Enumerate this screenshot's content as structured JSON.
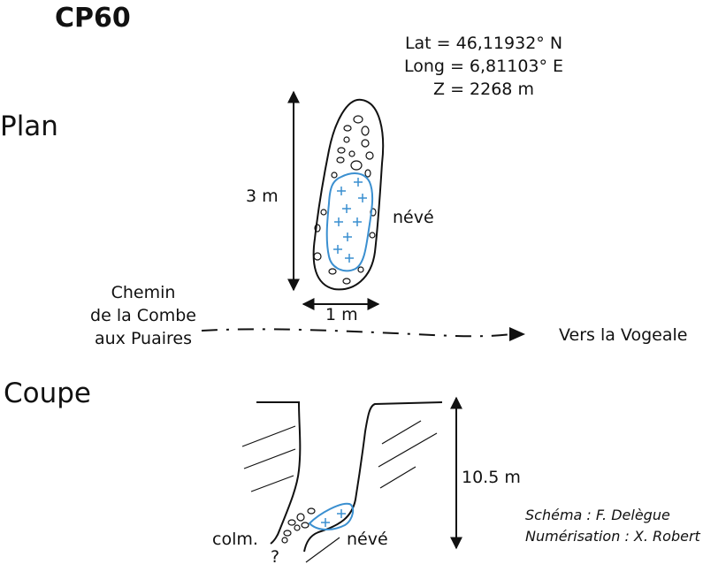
{
  "title": "CP60",
  "coordinates": {
    "lat": "Lat = 46,11932° N",
    "long": "Long = 6,81103° E",
    "z": "Z = 2268 m"
  },
  "plan": {
    "heading": "Plan",
    "length_label": "3 m",
    "width_label": "1 m",
    "neve_label": "névé",
    "path_label_lines": [
      "Chemin",
      "de la Combe",
      "aux Puaires"
    ],
    "direction_label": "Vers la Vogeale"
  },
  "section": {
    "heading": "Coupe",
    "depth_label": "10.5 m",
    "colm_label": "colm.",
    "question_label": "?",
    "neve_label": "névé"
  },
  "credits": {
    "schema": "Schéma : F. Delègue",
    "digitization": "Numérisation : X. Robert"
  },
  "colors": {
    "ink": "#111111",
    "neve": "#3a8fd0"
  }
}
